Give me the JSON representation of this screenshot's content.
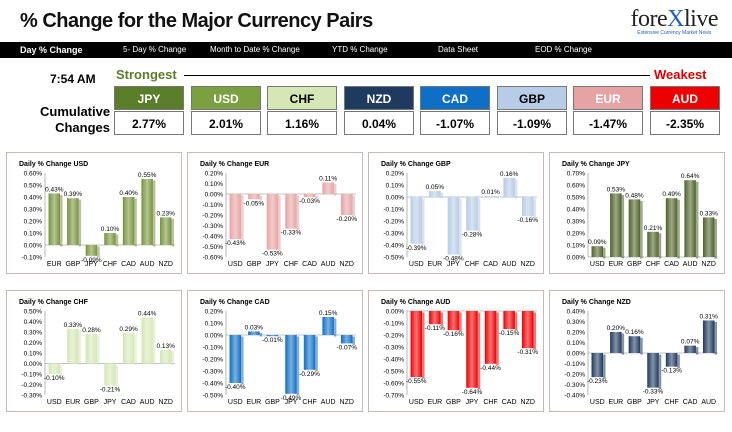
{
  "header": {
    "title": "% Change for the Major Currency Pairs",
    "logo": {
      "text_a": "fore",
      "text_b": "X",
      "text_c": "live",
      "tagline": "Extensive Currency Market News"
    }
  },
  "nav": [
    {
      "label": "Day % Change",
      "active": true
    },
    {
      "label": "5- Day % Change",
      "active": false
    },
    {
      "label": "Month to Date % Change",
      "active": false
    },
    {
      "label": "YTD % Change",
      "active": false
    },
    {
      "label": "Data Sheet",
      "active": false
    },
    {
      "label": "EOD % Change",
      "active": false
    }
  ],
  "summary": {
    "time": "7:54 AM",
    "strongest_label": "Strongest",
    "weakest_label": "Weakest",
    "cumulative_label_1": "Cumulative",
    "cumulative_label_2": "Changes",
    "currencies": [
      {
        "code": "JPY",
        "value": "2.77%",
        "bg": "#5a7d2a",
        "fg": "#ffffff"
      },
      {
        "code": "USD",
        "value": "2.01%",
        "bg": "#7ba03f",
        "fg": "#ffffff"
      },
      {
        "code": "CHF",
        "value": "1.16%",
        "bg": "#d4e7b5",
        "fg": "#000000"
      },
      {
        "code": "NZD",
        "value": "0.04%",
        "bg": "#1f3a5f",
        "fg": "#ffffff"
      },
      {
        "code": "CAD",
        "value": "-1.07%",
        "bg": "#0f6fc6",
        "fg": "#ffffff"
      },
      {
        "code": "GBP",
        "value": "-1.09%",
        "bg": "#b7cce6",
        "fg": "#000000"
      },
      {
        "code": "EUR",
        "value": "-1.47%",
        "bg": "#e6a3a3",
        "fg": "#ffffff"
      },
      {
        "code": "AUD",
        "value": "-2.35%",
        "bg": "#ee0000",
        "fg": "#ffffff"
      }
    ]
  },
  "chart_data": [
    {
      "type": "bar",
      "title": "Daily % Change USD",
      "categories": [
        "EUR",
        "GBP",
        "JPY",
        "CHF",
        "CAD",
        "AUD",
        "NZD"
      ],
      "values": [
        0.43,
        0.39,
        -0.09,
        0.1,
        0.4,
        0.55,
        0.23
      ],
      "labels": [
        "0.43%",
        "0.39%",
        "-0.09%",
        "0.10%",
        "0.40%",
        "0.55%",
        "0.23%"
      ],
      "ylim": [
        -0.1,
        0.6
      ],
      "yticks": [
        "0.60%",
        "0.50%",
        "0.40%",
        "0.30%",
        "0.20%",
        "0.10%",
        "0.00%",
        "-0.10%"
      ],
      "color": "#77933c"
    },
    {
      "type": "bar",
      "title": "Daily % Change EUR",
      "categories": [
        "USD",
        "GBP",
        "JPY",
        "CHF",
        "CAD",
        "AUD",
        "NZD"
      ],
      "values": [
        -0.43,
        -0.05,
        -0.53,
        -0.33,
        -0.03,
        0.11,
        -0.2
      ],
      "labels": [
        "-0.43%",
        "-0.05%",
        "-0.53%",
        "-0.33%",
        "-0.03%",
        "0.11%",
        "-0.20%"
      ],
      "ylim": [
        -0.6,
        0.2
      ],
      "yticks": [
        "0.20%",
        "0.10%",
        "0.00%",
        "-0.10%",
        "-0.20%",
        "-0.30%",
        "-0.40%",
        "-0.50%",
        "-0.60%"
      ],
      "color": "#e6a3a3"
    },
    {
      "type": "bar",
      "title": "Daily % Change GBP",
      "categories": [
        "USD",
        "EUR",
        "JPY",
        "CHF",
        "CAD",
        "AUD",
        "NZD"
      ],
      "values": [
        -0.39,
        0.05,
        -0.48,
        -0.28,
        0.01,
        0.16,
        -0.16
      ],
      "labels": [
        "-0.39%",
        "0.05%",
        "-0.48%",
        "-0.28%",
        "0.01%",
        "0.16%",
        "-0.16%"
      ],
      "ylim": [
        -0.5,
        0.2
      ],
      "yticks": [
        "0.20%",
        "0.10%",
        "0.00%",
        "-0.10%",
        "-0.20%",
        "-0.30%",
        "-0.40%",
        "-0.50%"
      ],
      "color": "#b7cce6"
    },
    {
      "type": "bar",
      "title": "Daily % Change JPY",
      "categories": [
        "USD",
        "EUR",
        "GBP",
        "CHF",
        "CAD",
        "AUD",
        "NZD"
      ],
      "values": [
        0.09,
        0.53,
        0.48,
        0.21,
        0.49,
        0.64,
        0.33
      ],
      "labels": [
        "0.09%",
        "0.53%",
        "0.48%",
        "0.21%",
        "0.49%",
        "0.64%",
        "0.33%"
      ],
      "ylim": [
        0,
        0.7
      ],
      "yticks": [
        "0.70%",
        "0.60%",
        "0.50%",
        "0.40%",
        "0.30%",
        "0.20%",
        "0.10%",
        "0.00%"
      ],
      "color": "#4f6228"
    },
    {
      "type": "bar",
      "title": "Daily % Change CHF",
      "categories": [
        "USD",
        "EUR",
        "GBP",
        "JPY",
        "CAD",
        "AUD",
        "NZD"
      ],
      "values": [
        -0.1,
        0.33,
        0.28,
        -0.21,
        0.29,
        0.44,
        0.13
      ],
      "labels": [
        "-0.10%",
        "0.33%",
        "0.28%",
        "-0.21%",
        "0.29%",
        "0.44%",
        "0.13%"
      ],
      "ylim": [
        -0.3,
        0.5
      ],
      "yticks": [
        "0.50%",
        "0.40%",
        "0.30%",
        "0.20%",
        "0.10%",
        "0.00%",
        "-0.10%",
        "-0.20%",
        "-0.30%"
      ],
      "color": "#d4e7b5"
    },
    {
      "type": "bar",
      "title": "Daily % Change CAD",
      "categories": [
        "USD",
        "EUR",
        "GBP",
        "JPY",
        "CHF",
        "AUD",
        "NZD"
      ],
      "values": [
        -0.4,
        0.03,
        -0.01,
        -0.49,
        -0.29,
        0.15,
        -0.07
      ],
      "labels": [
        "-0.40%",
        "0.03%",
        "-0.01%",
        "-0.49%",
        "-0.29%",
        "0.15%",
        "-0.07%"
      ],
      "ylim": [
        -0.5,
        0.2
      ],
      "yticks": [
        "0.20%",
        "0.10%",
        "0.00%",
        "-0.10%",
        "-0.20%",
        "-0.30%",
        "-0.40%",
        "-0.50%"
      ],
      "color": "#0f6fc6"
    },
    {
      "type": "bar",
      "title": "Daily % Change AUD",
      "categories": [
        "USD",
        "EUR",
        "GBP",
        "JPY",
        "CHF",
        "CAD",
        "NZD"
      ],
      "values": [
        -0.55,
        -0.11,
        -0.16,
        -0.64,
        -0.44,
        -0.15,
        -0.31
      ],
      "labels": [
        "-0.55%",
        "-0.11%",
        "-0.16%",
        "-0.64%",
        "-0.44%",
        "-0.15%",
        "-0.31%"
      ],
      "ylim": [
        -0.7,
        0
      ],
      "yticks": [
        "0.00%",
        "-0.10%",
        "-0.20%",
        "-0.30%",
        "-0.40%",
        "-0.50%",
        "-0.60%",
        "-0.70%"
      ],
      "color": "#ee0000"
    },
    {
      "type": "bar",
      "title": "Daily % Change NZD",
      "categories": [
        "USD",
        "EUR",
        "GBP",
        "JPY",
        "CHF",
        "CAD",
        "AUD"
      ],
      "values": [
        -0.23,
        0.2,
        0.16,
        -0.33,
        -0.13,
        0.07,
        0.31
      ],
      "labels": [
        "-0.23%",
        "0.20%",
        "0.16%",
        "-0.33%",
        "-0.13%",
        "0.07%",
        "0.31%"
      ],
      "ylim": [
        -0.4,
        0.4
      ],
      "yticks": [
        "0.40%",
        "0.30%",
        "0.20%",
        "0.10%",
        "0.00%",
        "-0.10%",
        "-0.20%",
        "-0.30%",
        "-0.40%"
      ],
      "color": "#1f3a5f"
    }
  ]
}
